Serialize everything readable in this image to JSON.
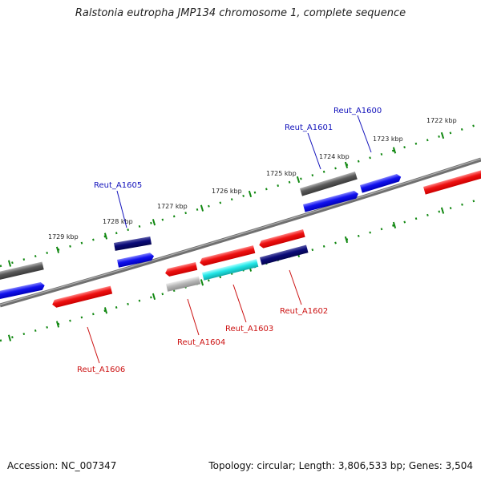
{
  "title": "Ralstonia eutropha JMP134 chromosome 1, complete sequence",
  "footer": {
    "accession": "Accession: NC_007347",
    "topology": "Topology: circular; Length: 3,806,533 bp; Genes: 3,504"
  },
  "colors": {
    "backbone": "#808080",
    "tick": "#118811",
    "label_top_strand": "#1111bb",
    "label_bottom_strand": "#cc1111",
    "gene_red": "#ee1111",
    "gene_blue": "#1111ee",
    "gene_navy": "#0a0a78",
    "gene_gray": "#5a5a5a",
    "gene_lightgray": "#a8a8a8",
    "gene_cyan": "#11dddd"
  },
  "kbp_labels": [
    "1722 kbp",
    "1723 kbp",
    "1724 kbp",
    "1725 kbp",
    "1726 kbp",
    "1727 kbp",
    "1728 kbp",
    "1729 kbp"
  ],
  "gene_labels": {
    "top": [
      "Reut_A1600",
      "Reut_A1601",
      "Reut_A1605"
    ],
    "bottom": [
      "Reut_A1602",
      "Reut_A1603",
      "Reut_A1604",
      "Reut_A1606"
    ]
  }
}
